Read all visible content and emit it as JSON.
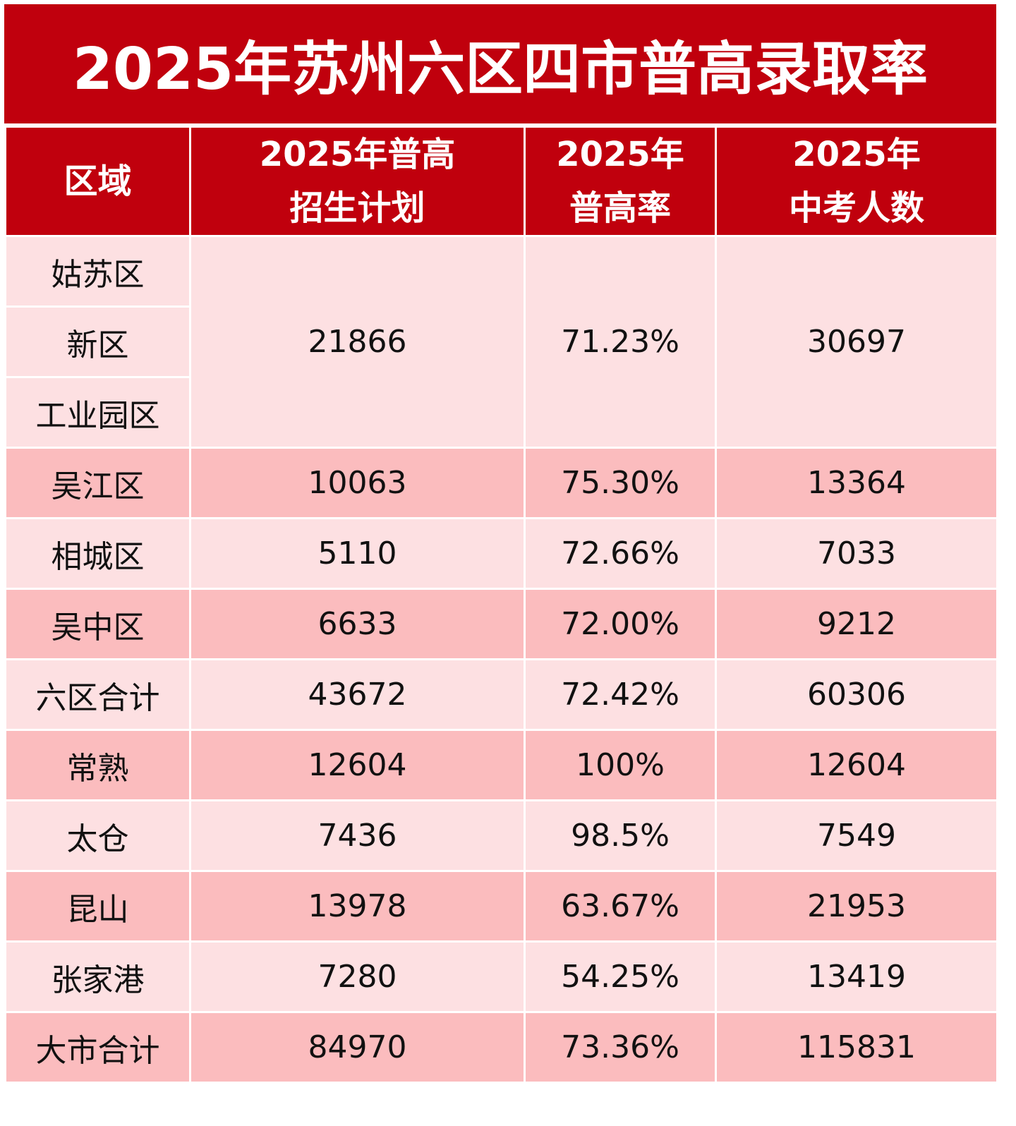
{
  "header": {
    "title": "2025年苏州六区四市普高录取率"
  },
  "table": {
    "headers": [
      [
        "区域"
      ],
      [
        "2025年普高",
        "招生计划"
      ],
      [
        "2025年",
        "普高率"
      ],
      [
        "2025年",
        "中考人数"
      ]
    ],
    "rows": [
      {
        "regions": [
          "姑苏区",
          "新区",
          "工业园区"
        ],
        "cells": [
          "21866",
          "71.23%",
          "30697"
        ]
      },
      {
        "regions": [
          "吴江区"
        ],
        "cells": [
          "10063",
          "75.30%",
          "13364"
        ]
      },
      {
        "regions": [
          "相城区"
        ],
        "cells": [
          "5110",
          "72.66%",
          "7033"
        ]
      },
      {
        "regions": [
          "吴中区"
        ],
        "cells": [
          "6633",
          "72.00%",
          "9212"
        ]
      },
      {
        "regions": [
          "六区合计"
        ],
        "cells": [
          "43672",
          "72.42%",
          "60306"
        ]
      },
      {
        "regions": [
          "常熟"
        ],
        "cells": [
          "12604",
          "100%",
          "12604"
        ]
      },
      {
        "regions": [
          "太仓"
        ],
        "cells": [
          "7436",
          "98.5%",
          "7549"
        ]
      },
      {
        "regions": [
          "昆山"
        ],
        "cells": [
          "13978",
          "63.67%",
          "21953"
        ]
      },
      {
        "regions": [
          "张家港"
        ],
        "cells": [
          "7280",
          "54.25%",
          "13419"
        ]
      },
      {
        "regions": [
          "大市合计"
        ],
        "cells": [
          "84970",
          "73.36%",
          "115831"
        ]
      }
    ]
  }
}
